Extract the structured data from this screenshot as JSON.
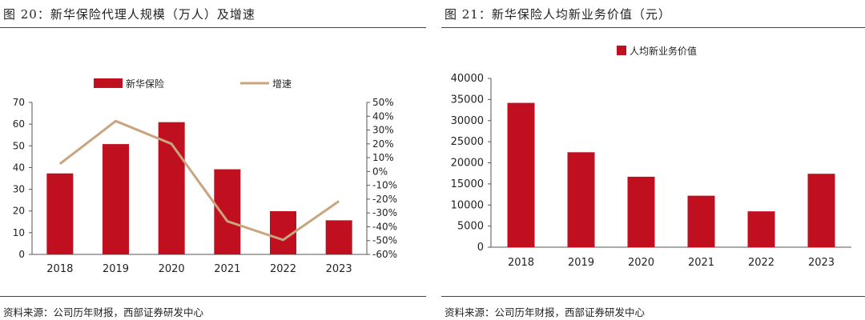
{
  "left": {
    "title": "图 20：新华保险代理人规模（万人）及增速",
    "source": "资料来源：公司历年财报，西部证券研发中心",
    "chart_data": {
      "type": "bar",
      "categories": [
        "2018",
        "2019",
        "2020",
        "2021",
        "2022",
        "2023"
      ],
      "series": [
        {
          "name": "新华保险",
          "type": "bar",
          "axis": "left",
          "values": [
            37.3,
            50.8,
            60.9,
            39.2,
            19.9,
            15.7
          ]
        },
        {
          "name": "增速",
          "type": "line",
          "axis": "right",
          "values": [
            5.5,
            36.5,
            20.0,
            -36.0,
            -49.5,
            -21.5
          ]
        }
      ],
      "y_left": {
        "lim": [
          0,
          70
        ],
        "ticks": [
          "0",
          "10",
          "20",
          "30",
          "40",
          "50",
          "60",
          "70"
        ]
      },
      "y_right": {
        "lim": [
          -60,
          50
        ],
        "ticks": [
          "-60%",
          "-50%",
          "-40%",
          "-30%",
          "-20%",
          "-10%",
          "0%",
          "10%",
          "20%",
          "30%",
          "40%",
          "50%"
        ]
      },
      "legend": "top-center",
      "colors": {
        "bar": "#C00F1F",
        "line": "#C8A57F"
      }
    }
  },
  "right": {
    "title": "图 21：新华保险人均新业务价值（元）",
    "source": "资料来源：公司历年财报，西部证券研发中心",
    "chart_data": {
      "type": "bar",
      "categories": [
        "2018",
        "2019",
        "2020",
        "2021",
        "2022",
        "2023"
      ],
      "series": [
        {
          "name": "人均新业务价值",
          "values": [
            34200,
            22500,
            16700,
            12200,
            8500,
            17400
          ]
        }
      ],
      "y": {
        "lim": [
          0,
          40000
        ],
        "ticks": [
          "0",
          "5000",
          "10000",
          "15000",
          "20000",
          "25000",
          "30000",
          "35000",
          "40000"
        ]
      },
      "legend": "top-center",
      "colors": {
        "bar": "#C00F1F"
      }
    }
  }
}
